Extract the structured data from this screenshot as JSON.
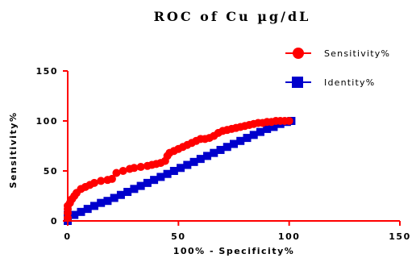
{
  "chart_data": {
    "type": "line",
    "title": "ROC of Cu µg/dL",
    "xlabel": "100% - Specificity%",
    "ylabel": "Sensitivity%",
    "xlim": [
      0,
      150
    ],
    "ylim": [
      0,
      150
    ],
    "xticks": [
      0,
      50,
      100,
      150
    ],
    "yticks": [
      0,
      50,
      100,
      150
    ],
    "grid": false,
    "legend": "top-right",
    "series": [
      {
        "name": "Sensitivity%",
        "color": "#ff0000",
        "marker": "circle",
        "x": [
          0,
          0,
          0,
          0,
          1,
          2,
          3,
          4,
          6,
          8,
          10,
          12,
          15,
          18,
          20,
          22,
          25,
          28,
          30,
          33,
          36,
          38,
          40,
          42,
          44,
          45,
          46,
          48,
          50,
          52,
          54,
          56,
          58,
          60,
          62,
          64,
          66,
          68,
          70,
          72,
          74,
          76,
          78,
          80,
          82,
          84,
          86,
          88,
          90,
          92,
          94,
          96,
          98,
          100
        ],
        "y": [
          3,
          8,
          12,
          15,
          18,
          22,
          25,
          28,
          32,
          34,
          36,
          38,
          40,
          41,
          42,
          48,
          50,
          52,
          53,
          54,
          55,
          56,
          57,
          58,
          60,
          65,
          68,
          70,
          72,
          74,
          76,
          78,
          80,
          82,
          82,
          83,
          85,
          88,
          90,
          91,
          92,
          93,
          94,
          95,
          96,
          97,
          98,
          98,
          99,
          99,
          100,
          100,
          100,
          100
        ]
      },
      {
        "name": "Identity%",
        "color": "#0000cc",
        "marker": "square",
        "x": [
          0,
          0,
          0,
          0,
          3,
          6,
          9,
          12,
          15,
          18,
          21,
          24,
          27,
          30,
          33,
          36,
          39,
          42,
          45,
          48,
          51,
          54,
          57,
          60,
          63,
          66,
          69,
          72,
          75,
          78,
          81,
          84,
          87,
          90,
          93,
          96,
          99,
          101
        ],
        "y": [
          0,
          2,
          4,
          6,
          6,
          9,
          12,
          15,
          18,
          20,
          23,
          26,
          29,
          32,
          35,
          38,
          41,
          44,
          47,
          50,
          53,
          56,
          59,
          62,
          65,
          68,
          71,
          74,
          77,
          80,
          83,
          86,
          89,
          92,
          94,
          97,
          99,
          100
        ]
      }
    ]
  }
}
